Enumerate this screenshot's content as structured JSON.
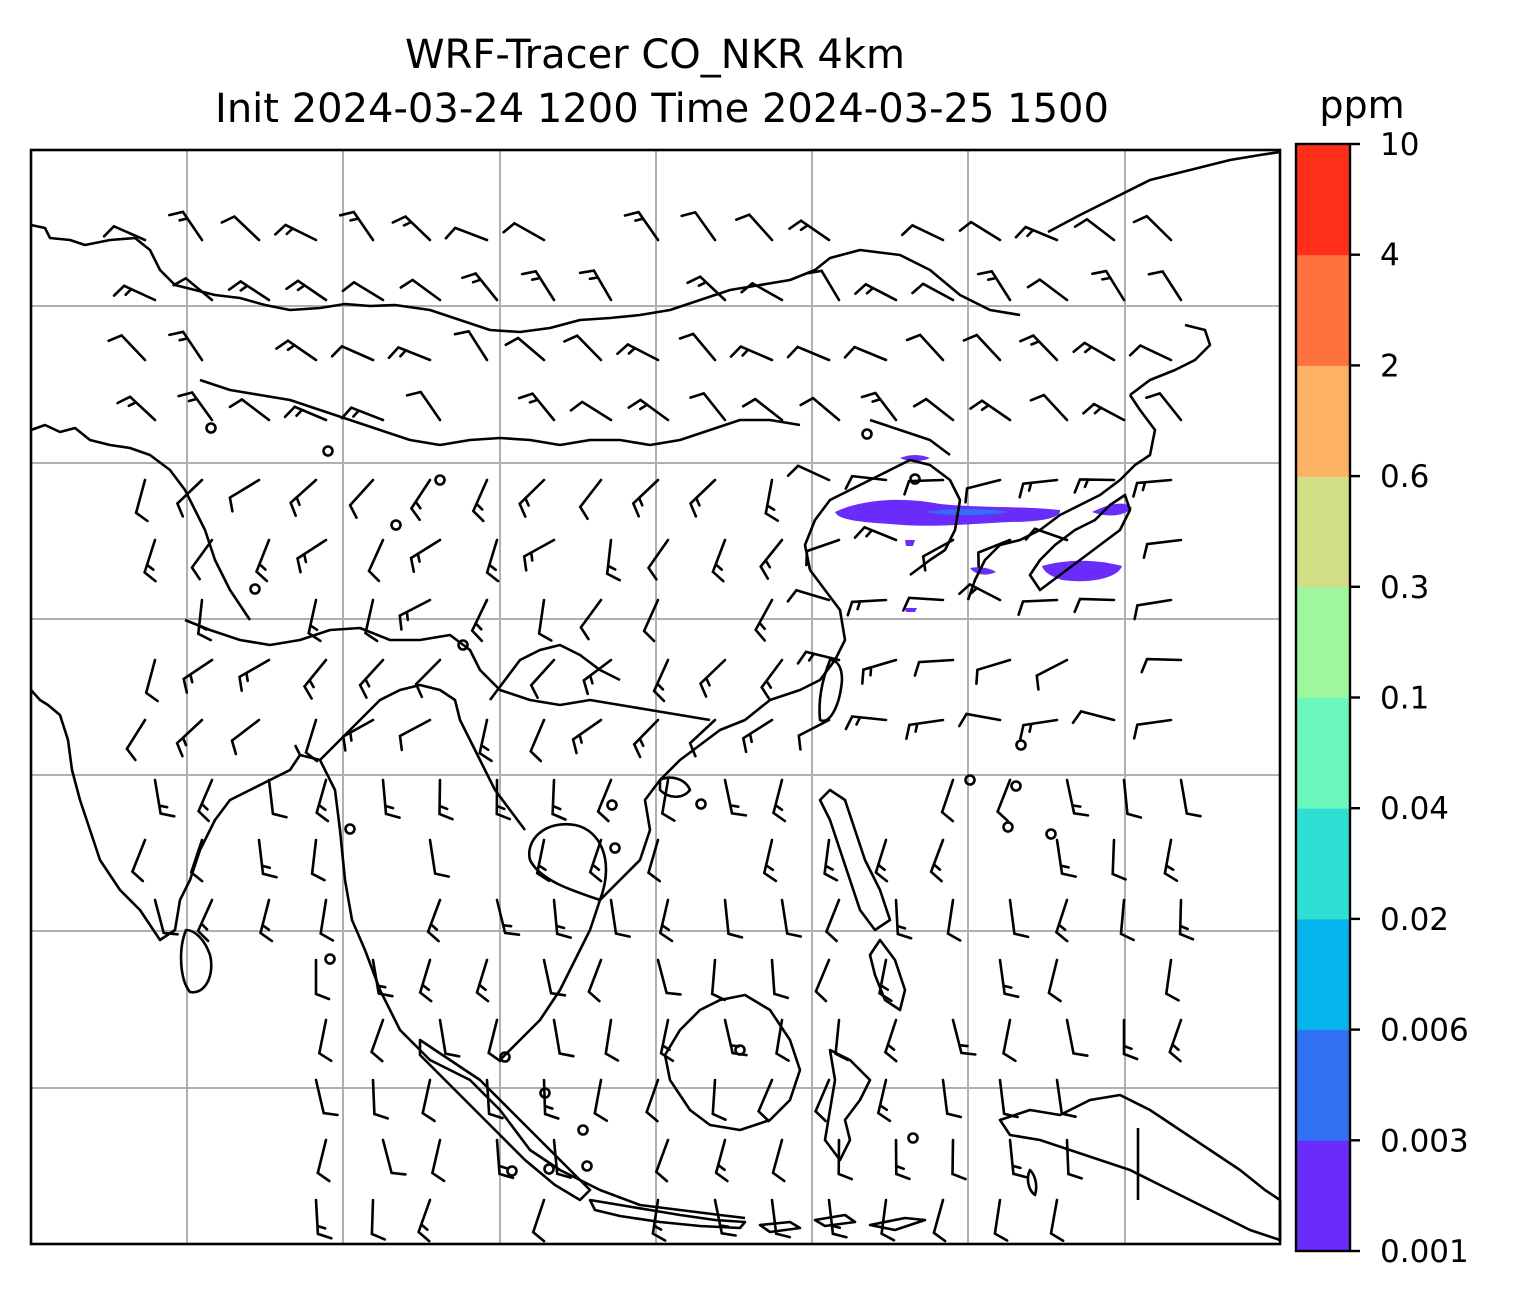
{
  "title_line1": "WRF-Tracer CO_NKR 4km",
  "title_line2": "Init 2024-03-24 1200 Time 2024-03-25 1500",
  "colorbar": {
    "unit": "ppm",
    "levels": [
      {
        "label": "0.001",
        "color": "#6a2cfa"
      },
      {
        "label": "0.003",
        "color": "#3170f3"
      },
      {
        "label": "0.006",
        "color": "#04b4ea"
      },
      {
        "label": "0.02",
        "color": "#2ee0d4"
      },
      {
        "label": "0.04",
        "color": "#6af8be"
      },
      {
        "label": "0.1",
        "color": "#9ef69d"
      },
      {
        "label": "0.3",
        "color": "#d2de86"
      },
      {
        "label": "0.6",
        "color": "#fdb163"
      },
      {
        "label": "2",
        "color": "#ff713f"
      },
      {
        "label": "4",
        "color": "#ff2f19"
      },
      {
        "label": "10",
        "color": null
      }
    ]
  },
  "map": {
    "gridlines": true,
    "features": [
      "coastlines",
      "borders",
      "wind-barbs",
      "calm-circles"
    ],
    "plume_color": "#6a2cfa"
  }
}
